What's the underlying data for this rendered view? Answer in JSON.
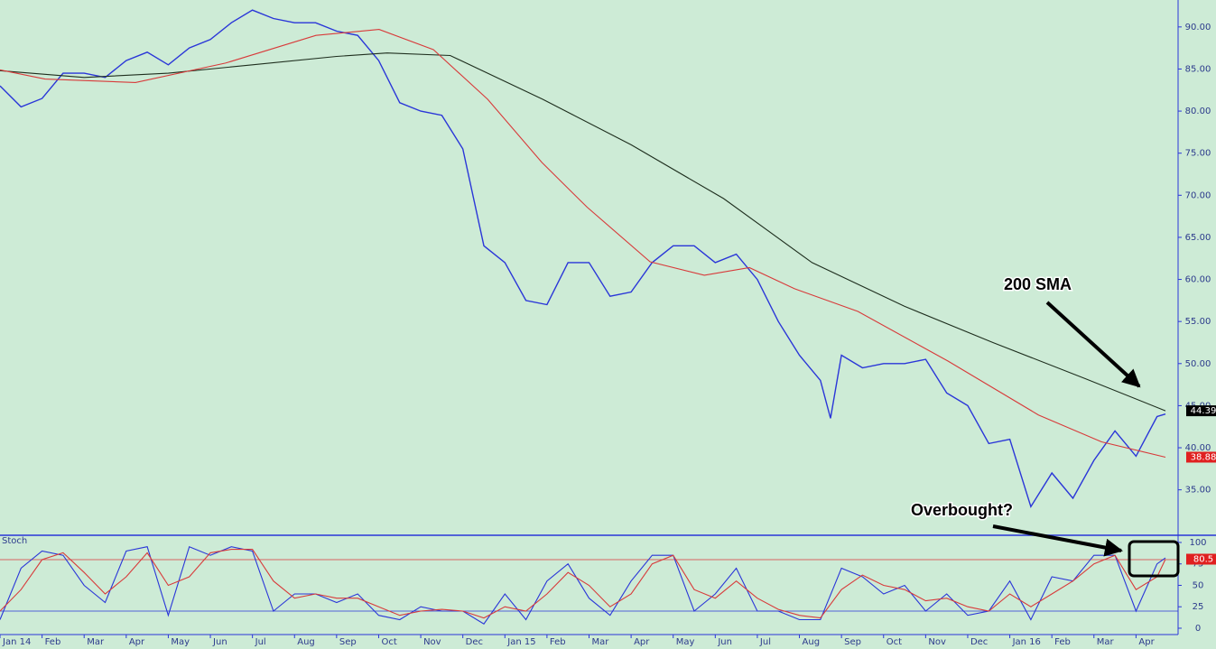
{
  "chart_data": [
    {
      "type": "line",
      "annotations": [
        "200 SMA",
        "Overbought?"
      ],
      "xlim": [
        0,
        28
      ],
      "ylim": [
        29.6,
        93.2
      ],
      "yticks": [
        {
          "value": 35,
          "label": "35.00"
        },
        {
          "value": 40,
          "label": "40.00"
        },
        {
          "value": 45,
          "label": "45.00"
        },
        {
          "value": 50,
          "label": "50.00"
        },
        {
          "value": 55,
          "label": "55.00"
        },
        {
          "value": 60,
          "label": "60.00"
        },
        {
          "value": 65,
          "label": "65.00"
        },
        {
          "value": 70,
          "label": "70.00"
        },
        {
          "value": 75,
          "label": "75.00"
        },
        {
          "value": 80,
          "label": "80.00"
        },
        {
          "value": 85,
          "label": "85.00"
        },
        {
          "value": 90,
          "label": "90.00"
        }
      ],
      "series": [
        {
          "color": "#2a36d8",
          "x": [
            0,
            0.5,
            1,
            1.5,
            2,
            2.5,
            3,
            3.5,
            4,
            4.5,
            5,
            5.5,
            6,
            6.5,
            7,
            7.5,
            8,
            8.5,
            9,
            9.5,
            10,
            10.5,
            11,
            11.5,
            12,
            12.5,
            13,
            13.5,
            14,
            14.5,
            15,
            15.5,
            16,
            16.5,
            17,
            17.5,
            18,
            18.5,
            19,
            19.5,
            19.74,
            20,
            20.5,
            21,
            21.5,
            22,
            22.5,
            23,
            23.5,
            24,
            24.5,
            25,
            25.5,
            26,
            26.5,
            27,
            27.5,
            27.7
          ],
          "values": [
            83,
            80.5,
            81.5,
            84.5,
            84.5,
            84,
            86,
            87,
            85.5,
            87.5,
            88.5,
            90.5,
            92,
            91,
            90.5,
            90.5,
            89.5,
            89,
            86,
            81,
            80,
            79.5,
            75.5,
            64,
            62,
            57.5,
            57,
            62,
            62,
            58,
            58.5,
            62,
            64,
            64,
            62,
            63,
            60,
            55,
            51,
            48,
            43.5,
            51,
            49.5,
            50,
            50,
            50.5,
            46.5,
            45,
            40.5,
            41,
            33,
            37,
            34,
            38.5,
            42,
            39,
            43.7,
            44
          ]
        },
        {
          "color": "#1e2e1e",
          "x": [
            0,
            2,
            4,
            6,
            8,
            9.2,
            10.7,
            12.9,
            15,
            17.2,
            19.3,
            21.5,
            23.6,
            25.8,
            27.7
          ],
          "values": [
            84.8,
            84,
            84.5,
            85.5,
            86.5,
            86.9,
            86.6,
            81.4,
            76,
            69.6,
            62,
            56.8,
            52.5,
            48.2,
            44.39
          ],
          "last_value": 44.39,
          "label_bg": "#000000"
        },
        {
          "color": "#d83a3a",
          "x": [
            0,
            1.07,
            3.22,
            5.36,
            7.51,
            9.01,
            10.3,
            11.59,
            12.88,
            13.95,
            15.45,
            16.74,
            17.81,
            18.88,
            20.39,
            22.53,
            24.68,
            26.18,
            27.7
          ],
          "values": [
            84.9,
            83.8,
            83.4,
            85.7,
            89,
            89.7,
            87.3,
            81.4,
            73.9,
            68.6,
            62.1,
            60.5,
            61.4,
            58.9,
            56.2,
            50.3,
            43.9,
            40.7,
            38.88
          ],
          "last_value": 38.88,
          "label_bg": "#e02020"
        }
      ]
    },
    {
      "type": "line",
      "title": "Stoch",
      "xlim": [
        0,
        28
      ],
      "ylim": [
        -7.4,
        108.4
      ],
      "yticks": [
        0,
        25,
        50,
        75,
        100
      ],
      "reference_lines": [
        {
          "value": 80,
          "color": "#d83a3a"
        },
        {
          "value": 20,
          "color": "#2a36d8"
        }
      ],
      "xticks": [
        {
          "value": 0,
          "label": "Jan 14"
        },
        {
          "value": 1,
          "label": "Feb"
        },
        {
          "value": 2,
          "label": "Mar"
        },
        {
          "value": 3,
          "label": "Apr"
        },
        {
          "value": 4,
          "label": "May"
        },
        {
          "value": 5,
          "label": "Jun"
        },
        {
          "value": 6,
          "label": "Jul"
        },
        {
          "value": 7,
          "label": "Aug"
        },
        {
          "value": 8,
          "label": "Sep"
        },
        {
          "value": 9,
          "label": "Oct"
        },
        {
          "value": 10,
          "label": "Nov"
        },
        {
          "value": 11,
          "label": "Dec"
        },
        {
          "value": 12,
          "label": "Jan 15"
        },
        {
          "value": 13,
          "label": "Feb"
        },
        {
          "value": 14,
          "label": "Mar"
        },
        {
          "value": 15,
          "label": "Apr"
        },
        {
          "value": 16,
          "label": "May"
        },
        {
          "value": 17,
          "label": "Jun"
        },
        {
          "value": 18,
          "label": "Jul"
        },
        {
          "value": 19,
          "label": "Aug"
        },
        {
          "value": 20,
          "label": "Sep"
        },
        {
          "value": 21,
          "label": "Oct"
        },
        {
          "value": 22,
          "label": "Nov"
        },
        {
          "value": 23,
          "label": "Dec"
        },
        {
          "value": 24,
          "label": "Jan 16"
        },
        {
          "value": 25,
          "label": "Feb"
        },
        {
          "value": 26,
          "label": "Mar"
        },
        {
          "value": 27,
          "label": "Apr"
        }
      ],
      "x": [
        0,
        0.5,
        1,
        1.5,
        2,
        2.5,
        3,
        3.5,
        4,
        4.5,
        5,
        5.5,
        6,
        6.5,
        7,
        7.5,
        8,
        8.5,
        9,
        9.5,
        10,
        10.5,
        11,
        11.5,
        12,
        12.5,
        13,
        13.5,
        14,
        14.5,
        15,
        15.5,
        16,
        16.5,
        17,
        17.5,
        18,
        18.5,
        19,
        19.5,
        20,
        20.5,
        21,
        21.5,
        22,
        22.5,
        23,
        23.5,
        24,
        24.5,
        25,
        25.5,
        26,
        26.5,
        27,
        27.5,
        27.7
      ],
      "series": [
        {
          "color": "#2a36d8",
          "values": [
            10,
            70,
            90,
            85,
            50,
            30,
            90,
            95,
            15,
            95,
            85,
            95,
            90,
            20,
            40,
            40,
            30,
            40,
            15,
            10,
            25,
            20,
            20,
            5,
            40,
            10,
            55,
            75,
            35,
            15,
            55,
            85,
            85,
            20,
            40,
            70,
            20,
            20,
            10,
            10,
            70,
            60,
            40,
            50,
            20,
            40,
            15,
            20,
            55,
            10,
            60,
            55,
            85,
            85,
            20,
            75,
            82
          ]
        },
        {
          "color": "#d83a3a",
          "values": [
            20,
            45,
            80,
            88,
            65,
            40,
            60,
            88,
            50,
            60,
            88,
            92,
            92,
            55,
            35,
            40,
            35,
            35,
            25,
            15,
            20,
            22,
            20,
            12,
            25,
            20,
            40,
            65,
            50,
            25,
            40,
            75,
            85,
            45,
            35,
            55,
            35,
            22,
            15,
            12,
            45,
            62,
            50,
            45,
            32,
            35,
            25,
            20,
            40,
            25,
            40,
            55,
            75,
            85,
            45,
            60,
            80.5
          ],
          "last_value": 80.5,
          "label_bg": "#e02020"
        }
      ]
    }
  ]
}
